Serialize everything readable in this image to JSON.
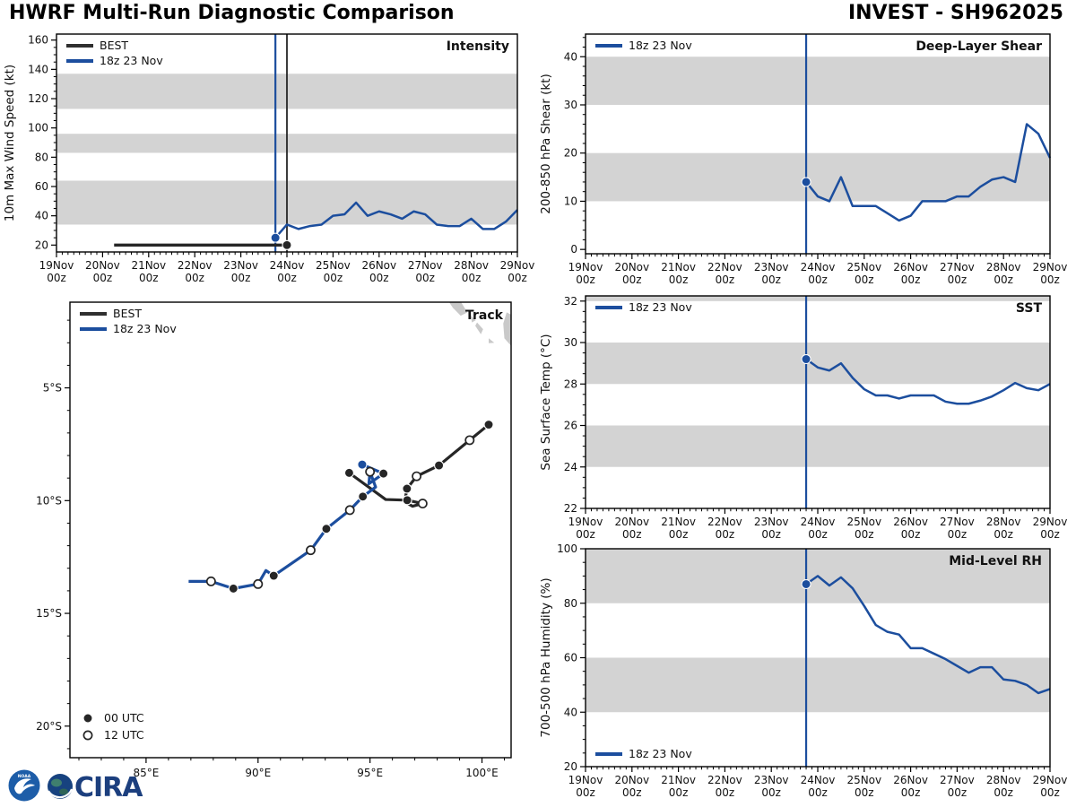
{
  "header": {
    "title": "HWRF Multi-Run Diagnostic Comparison",
    "storm_id": "INVEST - SH962025"
  },
  "colors": {
    "run_blue": "#1c4e9e",
    "best_black": "#2f2f2f",
    "band_gray": "#d3d3d3",
    "land_gray": "#c9c9c9",
    "marker_black": "#262626"
  },
  "legend_labels": {
    "best": "BEST",
    "run": "18z 23 Nov",
    "utc00": "00 UTC",
    "utc12": "12 UTC"
  },
  "logos": {
    "noaa_text": "NOAA",
    "cira_text": "CIRA"
  },
  "time_axis": {
    "xlim": [
      19,
      29
    ],
    "minor_step": 0.125,
    "days": [
      "19Nov",
      "20Nov",
      "21Nov",
      "22Nov",
      "23Nov",
      "24Nov",
      "25Nov",
      "26Nov",
      "27Nov",
      "28Nov",
      "29Nov"
    ],
    "hour_label": "00z"
  },
  "chart_data": [
    {
      "id": "intensity",
      "type": "line",
      "title": "Intensity",
      "ylabel": "10m Max Wind Speed (kt)",
      "ylim": [
        15.3,
        164.1
      ],
      "yticks": [
        20,
        40,
        60,
        80,
        100,
        120,
        140,
        160
      ],
      "y_minor_step": 5,
      "bands": [
        [
          34,
          64
        ],
        [
          83,
          96
        ],
        [
          113,
          137
        ]
      ],
      "x_start": 23.75,
      "x_step": 0.25,
      "values": [
        25,
        34,
        31,
        33,
        34,
        40,
        41,
        49,
        40,
        43,
        41,
        38,
        43,
        41,
        34,
        33,
        33,
        38,
        31,
        31,
        36,
        44
      ],
      "vline_blue": 23.75,
      "vline_black": 24.0,
      "best_line": {
        "y": 20,
        "x0": 20.25,
        "x1": 24.0
      },
      "legend": {
        "pos": "top-left",
        "entries": [
          {
            "label": "BEST",
            "color": "best_black"
          },
          {
            "label": "18z 23 Nov",
            "color": "run_blue"
          }
        ]
      }
    },
    {
      "id": "shear",
      "type": "line",
      "title": "Deep-Layer Shear",
      "ylabel": "200-850 hPa Shear (kt)",
      "ylim": [
        -0.9,
        44.7
      ],
      "yticks": [
        0,
        10,
        20,
        30,
        40
      ],
      "y_minor_step": 2,
      "bands": [
        [
          10,
          20
        ],
        [
          30,
          40
        ]
      ],
      "x_start": 23.75,
      "x_step": 0.25,
      "values": [
        14,
        11,
        10,
        15,
        9,
        9,
        9,
        7.5,
        6,
        7,
        10,
        10,
        10,
        11,
        11,
        13,
        14.5,
        15,
        14,
        26,
        24,
        19
      ],
      "vline_blue": 23.75,
      "legend": {
        "pos": "top-left",
        "entries": [
          {
            "label": "18z 23 Nov",
            "color": "run_blue"
          }
        ]
      }
    },
    {
      "id": "sst",
      "type": "line",
      "title": "SST",
      "ylabel": "Sea Surface Temp (°C)",
      "ylim": [
        22,
        32.25
      ],
      "yticks": [
        22,
        24,
        26,
        28,
        30,
        32
      ],
      "y_minor_step": 0.5,
      "bands": [
        [
          24,
          26
        ],
        [
          28,
          30
        ],
        [
          32,
          32.25
        ]
      ],
      "x_start": 23.75,
      "x_step": 0.25,
      "values": [
        29.2,
        28.8,
        28.65,
        29.0,
        28.3,
        27.75,
        27.45,
        27.45,
        27.3,
        27.45,
        27.45,
        27.45,
        27.15,
        27.05,
        27.05,
        27.2,
        27.4,
        27.7,
        28.05,
        27.8,
        27.7,
        28.0
      ],
      "vline_blue": 23.75,
      "legend": {
        "pos": "top-left",
        "entries": [
          {
            "label": "18z 23 Nov",
            "color": "run_blue"
          }
        ]
      }
    },
    {
      "id": "rh",
      "type": "line",
      "title": "Mid-Level RH",
      "ylabel": "700-500 hPa Humidity (%)",
      "ylim": [
        20,
        100
      ],
      "yticks": [
        20,
        40,
        60,
        80,
        100
      ],
      "y_minor_step": 5,
      "bands": [
        [
          40,
          60
        ],
        [
          80,
          100
        ]
      ],
      "x_start": 23.75,
      "x_step": 0.25,
      "values": [
        87,
        90,
        86.5,
        89.5,
        85.5,
        79,
        72,
        69.5,
        68.5,
        63.5,
        63.5,
        61.5,
        59.5,
        57,
        54.5,
        56.5,
        56.5,
        52,
        51.5,
        50,
        47,
        48.5
      ],
      "vline_blue": 23.75,
      "legend": {
        "pos": "bottom-left",
        "entries": [
          {
            "label": "18z 23 Nov",
            "color": "run_blue"
          }
        ]
      }
    },
    {
      "id": "track",
      "type": "map",
      "title": "Track",
      "lonlim": [
        81.6,
        101.3
      ],
      "latlim": [
        -21.4,
        -1.2
      ],
      "lon_ticks": [
        85,
        90,
        95,
        100
      ],
      "lon_tick_labels": [
        "85°E",
        "90°E",
        "95°E",
        "100°E"
      ],
      "lat_ticks": [
        -5,
        -10,
        -15,
        -20
      ],
      "lat_tick_labels": [
        "5°S",
        "10°S",
        "15°S",
        "20°S"
      ],
      "minor_step": 1,
      "best_points": [
        {
          "lon": 100.3,
          "lat": -6.63,
          "m": "f"
        },
        {
          "lon": 99.45,
          "lat": -7.32,
          "m": "o"
        },
        {
          "lon": 98.08,
          "lat": -8.44,
          "m": "f"
        },
        {
          "lon": 97.08,
          "lat": -8.92,
          "m": "o"
        },
        {
          "lon": 96.65,
          "lat": -9.47,
          "m": "f"
        },
        {
          "lon": 96.55,
          "lat": -10.05,
          "m": null
        },
        {
          "lon": 96.9,
          "lat": -10.25,
          "m": null
        },
        {
          "lon": 97.35,
          "lat": -10.13,
          "m": "o"
        },
        {
          "lon": 96.66,
          "lat": -9.98,
          "m": "f"
        },
        {
          "lon": 95.7,
          "lat": -9.95,
          "m": null
        },
        {
          "lon": 94.07,
          "lat": -8.77,
          "m": "f"
        }
      ],
      "fcst_points": [
        {
          "lon": 94.65,
          "lat": -8.4,
          "m": "init"
        },
        {
          "lon": 95.6,
          "lat": -8.8,
          "m": "f"
        },
        {
          "lon": 94.95,
          "lat": -9.25,
          "m": null
        },
        {
          "lon": 95.0,
          "lat": -8.72,
          "m": "o"
        },
        {
          "lon": 95.25,
          "lat": -9.4,
          "m": null
        },
        {
          "lon": 94.68,
          "lat": -9.82,
          "m": "f"
        },
        {
          "lon": 94.1,
          "lat": -10.42,
          "m": "o"
        },
        {
          "lon": 93.05,
          "lat": -11.25,
          "m": "f"
        },
        {
          "lon": 92.35,
          "lat": -12.2,
          "m": "o"
        },
        {
          "lon": 90.7,
          "lat": -13.33,
          "m": "f"
        },
        {
          "lon": 90.35,
          "lat": -13.1,
          "m": null
        },
        {
          "lon": 90.0,
          "lat": -13.7,
          "m": "o"
        },
        {
          "lon": 88.9,
          "lat": -13.9,
          "m": "f"
        },
        {
          "lon": 87.9,
          "lat": -13.58,
          "m": "o"
        },
        {
          "lon": 86.9,
          "lat": -13.58,
          "m": null
        }
      ],
      "land_polygons": [
        [
          [
            98.45,
            -0.85
          ],
          [
            98.75,
            -0.95
          ],
          [
            99.0,
            -1.1
          ],
          [
            99.35,
            -1.65
          ],
          [
            99.05,
            -1.8
          ],
          [
            98.7,
            -1.45
          ],
          [
            98.5,
            -1.15
          ]
        ],
        [
          [
            99.5,
            -1.8
          ],
          [
            99.72,
            -2.0
          ],
          [
            99.55,
            -2.1
          ]
        ],
        [
          [
            99.78,
            -2.1
          ],
          [
            100.05,
            -2.4
          ],
          [
            99.95,
            -2.62
          ],
          [
            99.7,
            -2.25
          ]
        ],
        [
          [
            100.3,
            -2.8
          ],
          [
            100.55,
            -3.0
          ],
          [
            100.3,
            -3.02
          ]
        ],
        [
          [
            101.1,
            -1.65
          ],
          [
            101.4,
            -1.8
          ],
          [
            101.4,
            -3.25
          ],
          [
            101.0,
            -2.8
          ],
          [
            100.95,
            -2.15
          ]
        ]
      ],
      "legend": {
        "pos": "top-left",
        "entries": [
          {
            "label": "BEST",
            "color": "best_black"
          },
          {
            "label": "18z 23 Nov",
            "color": "run_blue"
          }
        ]
      },
      "marker_legend": [
        {
          "label": "00 UTC",
          "marker": "f"
        },
        {
          "label": "12 UTC",
          "marker": "o"
        }
      ]
    }
  ]
}
